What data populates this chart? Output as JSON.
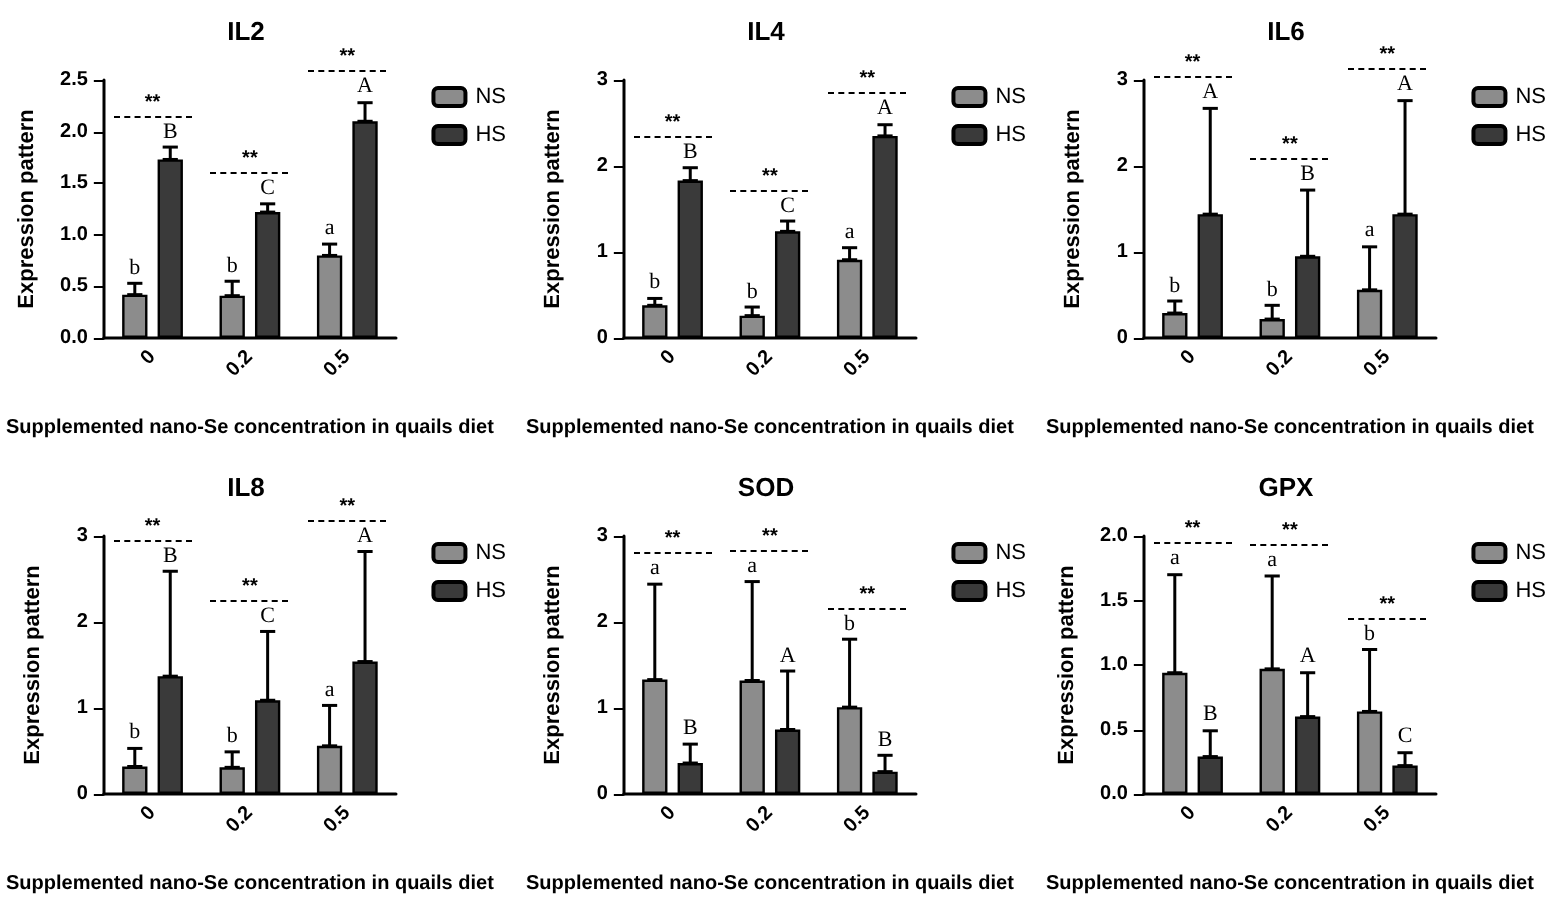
{
  "chart_data": [
    {
      "type": "bar",
      "title": "IL2",
      "xlabel": "Supplemented nano-Se concentration in quails diet",
      "ylabel": "Expression pattern",
      "categories": [
        "0",
        "0.2",
        "0.5"
      ],
      "ylim": [
        0,
        2.5
      ],
      "yticks": [
        {
          "value": 0,
          "label": "0.0"
        },
        {
          "value": 0.5,
          "label": "0.5"
        },
        {
          "value": 1,
          "label": "1.0"
        },
        {
          "value": 1.5,
          "label": "1.5"
        },
        {
          "value": 2,
          "label": "2.0"
        },
        {
          "value": 2.5,
          "label": "2.5"
        }
      ],
      "legend": "top right",
      "grid": false,
      "series": [
        {
          "name": "NS",
          "color": "#8c8c8c",
          "values": [
            0.42,
            0.41,
            0.8
          ],
          "errors": [
            [
              0.42,
              0.53
            ],
            [
              0.41,
              0.55
            ],
            [
              0.8,
              0.91
            ]
          ]
        },
        {
          "name": "HS",
          "color": "#3a3a3a",
          "values": [
            1.73,
            1.22,
            2.1
          ],
          "errors": [
            [
              1.73,
              1.85
            ],
            [
              1.22,
              1.3
            ],
            [
              2.1,
              2.28
            ]
          ]
        }
      ],
      "annotations": [
        "b",
        "B",
        "**",
        "b",
        "C",
        "**",
        "a",
        "A",
        "**"
      ]
    },
    {
      "type": "bar",
      "title": "IL4",
      "xlabel": "Supplemented nano-Se concentration in quails diet",
      "ylabel": "Expression pattern",
      "categories": [
        "0",
        "0.2",
        "0.5"
      ],
      "ylim": [
        0,
        3
      ],
      "yticks": [
        0,
        1,
        2,
        3
      ],
      "legend": "top right",
      "grid": false,
      "series": [
        {
          "name": "NS",
          "color": "#8c8c8c",
          "values": [
            0.38,
            0.26,
            0.91
          ],
          "errors": [
            [
              0.38,
              0.46
            ],
            [
              0.26,
              0.36
            ],
            [
              0.91,
              1.05
            ]
          ]
        },
        {
          "name": "HS",
          "color": "#3a3a3a",
          "values": [
            1.83,
            1.24,
            2.35
          ],
          "errors": [
            [
              1.83,
              1.98
            ],
            [
              1.24,
              1.36
            ],
            [
              2.35,
              2.48
            ]
          ]
        }
      ],
      "annotations": [
        "b",
        "B",
        "**",
        "b",
        "C",
        "**",
        "a",
        "A",
        "**"
      ]
    },
    {
      "type": "bar",
      "title": "IL6",
      "xlabel": "Supplemented nano-Se concentration in quails diet",
      "ylabel": "Expression pattern",
      "categories": [
        "0",
        "0.2",
        "0.5"
      ],
      "ylim": [
        0,
        3
      ],
      "yticks": [
        0,
        1,
        2,
        3
      ],
      "legend": "top right",
      "grid": false,
      "series": [
        {
          "name": "NS",
          "color": "#8c8c8c",
          "values": [
            0.29,
            0.22,
            0.56
          ],
          "errors": [
            [
              0.29,
              0.43
            ],
            [
              0.22,
              0.38
            ],
            [
              0.56,
              1.06
            ]
          ]
        },
        {
          "name": "HS",
          "color": "#3a3a3a",
          "values": [
            1.44,
            0.95,
            1.44
          ],
          "errors": [
            [
              1.44,
              2.67
            ],
            [
              0.95,
              1.72
            ],
            [
              1.44,
              2.76
            ]
          ]
        }
      ],
      "annotations": [
        "b",
        "A",
        "**",
        "b",
        "B",
        "**",
        "a",
        "A",
        "**"
      ]
    },
    {
      "type": "bar",
      "title": "IL8",
      "xlabel": "Supplemented nano-Se concentration in quails diet",
      "ylabel": "Expression pattern",
      "categories": [
        "0",
        "0.2",
        "0.5"
      ],
      "ylim": [
        0,
        3
      ],
      "yticks": [
        0,
        1,
        2,
        3
      ],
      "legend": "top right",
      "grid": false,
      "series": [
        {
          "name": "NS",
          "color": "#8c8c8c",
          "values": [
            0.32,
            0.31,
            0.56
          ],
          "errors": [
            [
              0.32,
              0.53
            ],
            [
              0.31,
              0.49
            ],
            [
              0.56,
              1.03
            ]
          ]
        },
        {
          "name": "HS",
          "color": "#3a3a3a",
          "values": [
            1.37,
            1.09,
            1.54
          ],
          "errors": [
            [
              1.37,
              2.59
            ],
            [
              1.09,
              1.89
            ],
            [
              1.54,
              2.82
            ]
          ]
        }
      ],
      "annotations": [
        "b",
        "B",
        "**",
        "b",
        "C",
        "**",
        "a",
        "A",
        "**"
      ]
    },
    {
      "type": "bar",
      "title": "SOD",
      "xlabel": "Supplemented nano-Se concentration in quails diet",
      "ylabel": "Expression pattern",
      "categories": [
        "0",
        "0.2",
        "0.5"
      ],
      "ylim": [
        0,
        3
      ],
      "yticks": [
        0,
        1,
        2,
        3
      ],
      "legend": "top right",
      "grid": false,
      "series": [
        {
          "name": "NS",
          "color": "#8c8c8c",
          "values": [
            1.33,
            1.32,
            1.01
          ],
          "errors": [
            [
              1.33,
              2.44
            ],
            [
              1.32,
              2.47
            ],
            [
              1.01,
              1.8
            ]
          ]
        },
        {
          "name": "HS",
          "color": "#3a3a3a",
          "values": [
            0.36,
            0.75,
            0.26
          ],
          "errors": [
            [
              0.36,
              0.58
            ],
            [
              0.75,
              1.43
            ],
            [
              0.26,
              0.45
            ]
          ]
        }
      ],
      "annotations": [
        "a",
        "B",
        "**",
        "a",
        "A",
        "**",
        "b",
        "B",
        "**"
      ]
    },
    {
      "type": "bar",
      "title": "GPX",
      "xlabel": "Supplemented nano-Se concentration in quails diet",
      "ylabel": "Expression pattern",
      "categories": [
        "0",
        "0.2",
        "0.5"
      ],
      "ylim": [
        0,
        2
      ],
      "yticks": [
        {
          "value": 0,
          "label": "0.0"
        },
        {
          "value": 0.5,
          "label": "0.5"
        },
        {
          "value": 1,
          "label": "1.0"
        },
        {
          "value": 1.5,
          "label": "1.5"
        },
        {
          "value": 2,
          "label": "2.0"
        }
      ],
      "legend": "top right",
      "grid": false,
      "series": [
        {
          "name": "NS",
          "color": "#8c8c8c",
          "values": [
            0.94,
            0.97,
            0.64
          ],
          "errors": [
            [
              0.94,
              1.7
            ],
            [
              0.97,
              1.69
            ],
            [
              0.64,
              1.12
            ]
          ]
        },
        {
          "name": "HS",
          "color": "#3a3a3a",
          "values": [
            0.29,
            0.6,
            0.22
          ],
          "errors": [
            [
              0.29,
              0.49
            ],
            [
              0.6,
              0.94
            ],
            [
              0.22,
              0.32
            ]
          ]
        }
      ],
      "annotations": [
        "a",
        "B",
        "**",
        "a",
        "A",
        "**",
        "b",
        "C",
        "**"
      ]
    }
  ]
}
